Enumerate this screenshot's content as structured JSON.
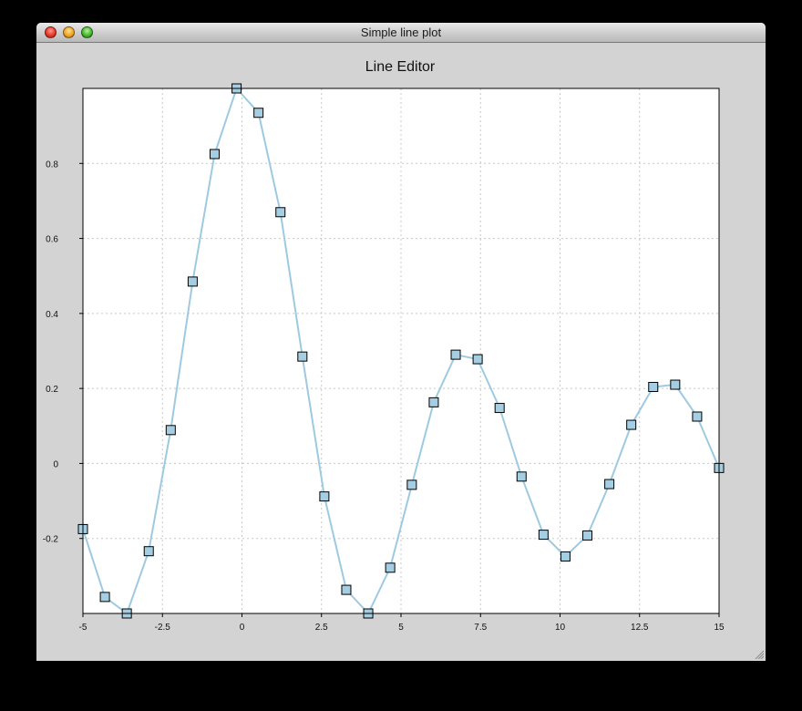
{
  "window": {
    "title": "Simple line plot"
  },
  "chart_data": {
    "type": "line",
    "title": "Line Editor",
    "xlabel": "",
    "ylabel": "",
    "xlim": [
      -5,
      15
    ],
    "ylim": [
      -0.4,
      1.0
    ],
    "x_ticks": [
      "-5",
      "-2.5",
      "0",
      "2.5",
      "5",
      "7.5",
      "10",
      "12.5",
      "15"
    ],
    "y_ticks": [
      "-0.2",
      "0",
      "0.2",
      "0.4",
      "0.6",
      "0.8"
    ],
    "x_tick_values": [
      -5,
      -2.5,
      0,
      2.5,
      5,
      7.5,
      10,
      12.5,
      15
    ],
    "y_tick_values": [
      -0.2,
      0,
      0.2,
      0.4,
      0.6,
      0.8
    ],
    "grid": true,
    "line_color": "#9ecae1",
    "marker": "square",
    "marker_color": "#a6cee3",
    "marker_edge_color": "#000000",
    "series": [
      {
        "x": [
          -5,
          -4.31,
          -3.62,
          -2.93,
          -2.24,
          -1.55,
          -0.86,
          -0.17,
          0.52,
          1.21,
          1.9,
          2.59,
          3.28,
          3.97,
          4.66,
          5.34,
          6.03,
          6.72,
          7.41,
          8.1,
          8.79,
          9.48,
          10.17,
          10.86,
          11.55,
          12.24,
          12.93,
          13.62,
          14.31,
          15
        ],
        "y": [
          -0.175,
          -0.356,
          -0.4,
          -0.234,
          0.089,
          0.485,
          0.825,
          1.0,
          0.935,
          0.67,
          0.285,
          -0.088,
          -0.337,
          -0.4,
          -0.278,
          -0.057,
          0.163,
          0.29,
          0.278,
          0.148,
          -0.035,
          -0.19,
          -0.248,
          -0.192,
          -0.055,
          0.103,
          0.204,
          0.21,
          0.125,
          -0.012
        ]
      }
    ]
  }
}
